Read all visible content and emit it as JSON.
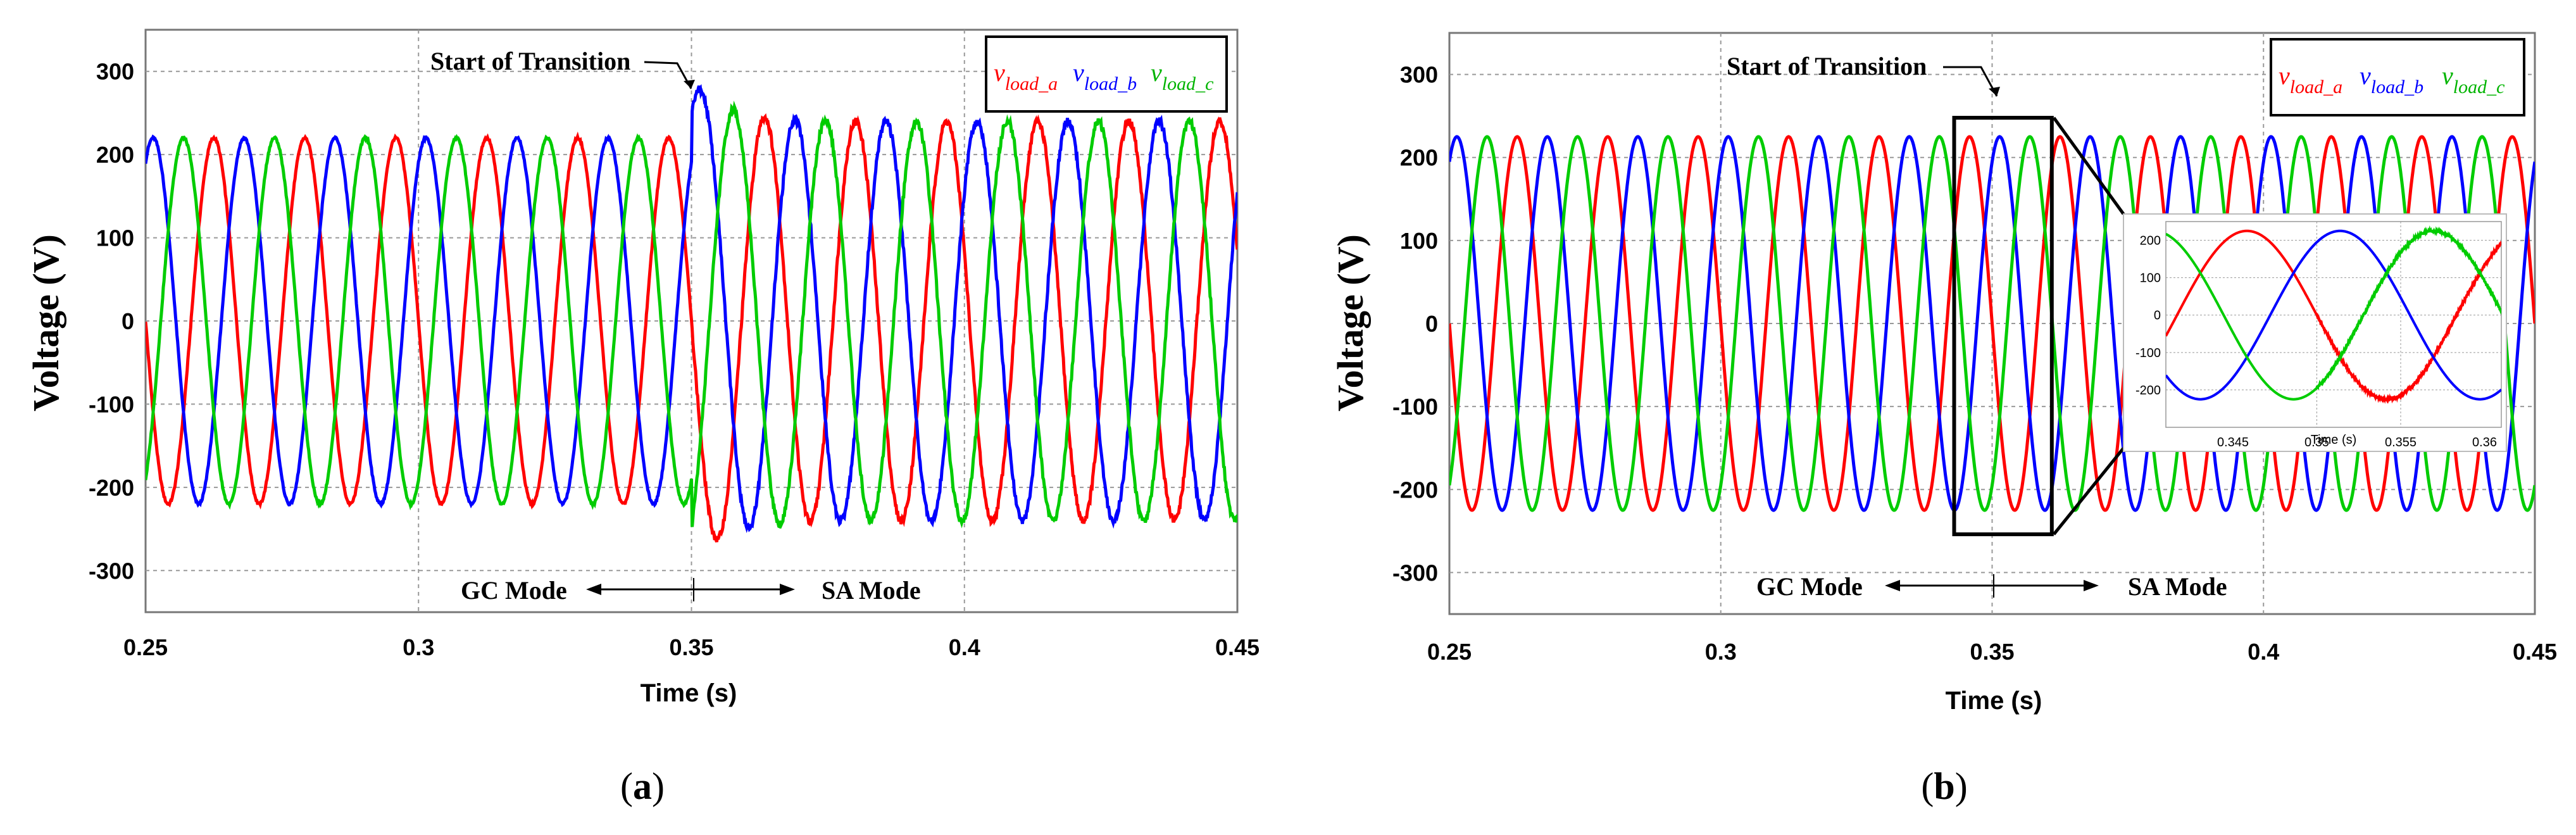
{
  "chart_data": [
    {
      "type": "line",
      "caption": "(a)",
      "caption_letter": "a",
      "ylabel": "Voltage (V)",
      "xlabel": "Time (s)",
      "xlim": [
        0.25,
        0.45
      ],
      "ylim": [
        -350,
        350
      ],
      "x_ticks": [
        "0.25",
        "0.3",
        "0.35",
        "0.4",
        "0.45"
      ],
      "y_ticks": [
        "300",
        "200",
        "100",
        "0",
        "-100",
        "-200",
        "-300"
      ],
      "grid": true,
      "legend": {
        "placement": "top-right",
        "entries": [
          {
            "base": "v",
            "sub": "load_a",
            "color": "#ff0000"
          },
          {
            "base": "v",
            "sub": "load_b",
            "color": "#0000ff"
          },
          {
            "base": "v",
            "sub": "load_c",
            "color": "#00cc00"
          }
        ]
      },
      "annotations": {
        "transition": "Start of Transition",
        "left_mode": "GC Mode",
        "right_mode": "SA Mode"
      },
      "series": [
        {
          "name": "vload_a",
          "color": "#ff0000",
          "frequency_hz": 60,
          "amplitude_v": 220,
          "phase_deg": 180
        },
        {
          "name": "vload_b",
          "color": "#0000ff",
          "frequency_hz": 60,
          "amplitude_v": 220,
          "phase_deg": 60
        },
        {
          "name": "vload_c",
          "color": "#00cc00",
          "frequency_hz": 60,
          "amplitude_v": 220,
          "phase_deg": -60
        }
      ],
      "transition_time_s": 0.35,
      "post_transition_peak_v": 290,
      "post_transition_min_v": -300,
      "steady_amplitude_after_v": 240
    },
    {
      "type": "line",
      "caption": "(b)",
      "caption_letter": "b",
      "ylabel": "Voltage (V)",
      "xlabel": "Time (s)",
      "xlim": [
        0.25,
        0.45
      ],
      "ylim": [
        -350,
        350
      ],
      "x_ticks": [
        "0.25",
        "0.3",
        "0.35",
        "0.4",
        "0.45"
      ],
      "y_ticks": [
        "300",
        "200",
        "100",
        "0",
        "-100",
        "-200",
        "-300"
      ],
      "grid": true,
      "legend": {
        "placement": "top-right",
        "entries": [
          {
            "base": "v",
            "sub": "load_a",
            "color": "#ff0000"
          },
          {
            "base": "v",
            "sub": "load_b",
            "color": "#0000ff"
          },
          {
            "base": "v",
            "sub": "load_c",
            "color": "#00cc00"
          }
        ]
      },
      "annotations": {
        "transition": "Start of Transition",
        "left_mode": "GC Mode",
        "right_mode": "SA Mode"
      },
      "series": [
        {
          "name": "vload_a",
          "color": "#ff0000",
          "frequency_hz": 60,
          "amplitude_v": 225,
          "phase_deg": 180
        },
        {
          "name": "vload_b",
          "color": "#0000ff",
          "frequency_hz": 60,
          "amplitude_v": 225,
          "phase_deg": 60
        },
        {
          "name": "vload_c",
          "color": "#00cc00",
          "frequency_hz": 60,
          "amplitude_v": 225,
          "phase_deg": -60
        }
      ],
      "zoom_window_s": [
        0.343,
        0.361
      ],
      "inset": {
        "xlim": [
          0.341,
          0.361
        ],
        "ylim": [
          -300,
          250
        ],
        "x_ticks": [
          "0.345",
          "0.35",
          "0.355",
          "0.36"
        ],
        "y_ticks": [
          "200",
          "100",
          "0",
          "-100",
          "-200"
        ],
        "xlabel": "Time (s)"
      }
    }
  ]
}
